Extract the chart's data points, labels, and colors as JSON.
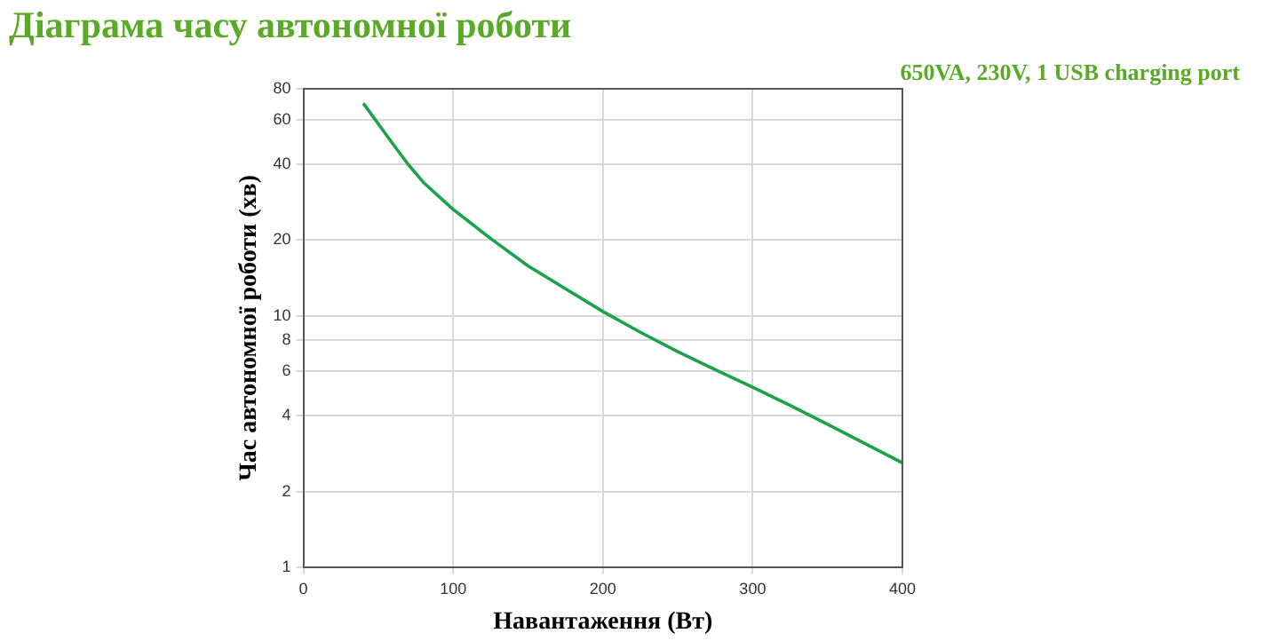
{
  "chart_data": {
    "type": "line",
    "title": "Діаграма часу автономної роботи",
    "subtitle": "650VA, 230V, 1 USB charging port",
    "xlabel": "Навантаження (Вт)",
    "ylabel": "Час автономної роботи (хв)",
    "x": [
      40,
      50,
      60,
      70,
      80,
      90,
      100,
      125,
      150,
      175,
      200,
      225,
      250,
      275,
      300,
      325,
      350,
      375,
      400
    ],
    "series": [
      {
        "color": "#1aa34a",
        "values": [
          70,
          58,
          48,
          40,
          34,
          30,
          26.5,
          20.3,
          15.8,
          12.8,
          10.4,
          8.6,
          7.2,
          6.1,
          5.2,
          4.4,
          3.7,
          3.1,
          2.6
        ]
      }
    ],
    "log": "y",
    "xlim": [
      0,
      400
    ],
    "xticks": [
      0,
      100,
      200,
      300,
      400
    ],
    "ylim": [
      1,
      80
    ],
    "yticks": [
      1,
      2,
      4,
      6,
      8,
      10,
      20,
      40,
      60,
      80
    ],
    "grid": true,
    "legend": false,
    "marker": "none",
    "line_style": "solid"
  }
}
